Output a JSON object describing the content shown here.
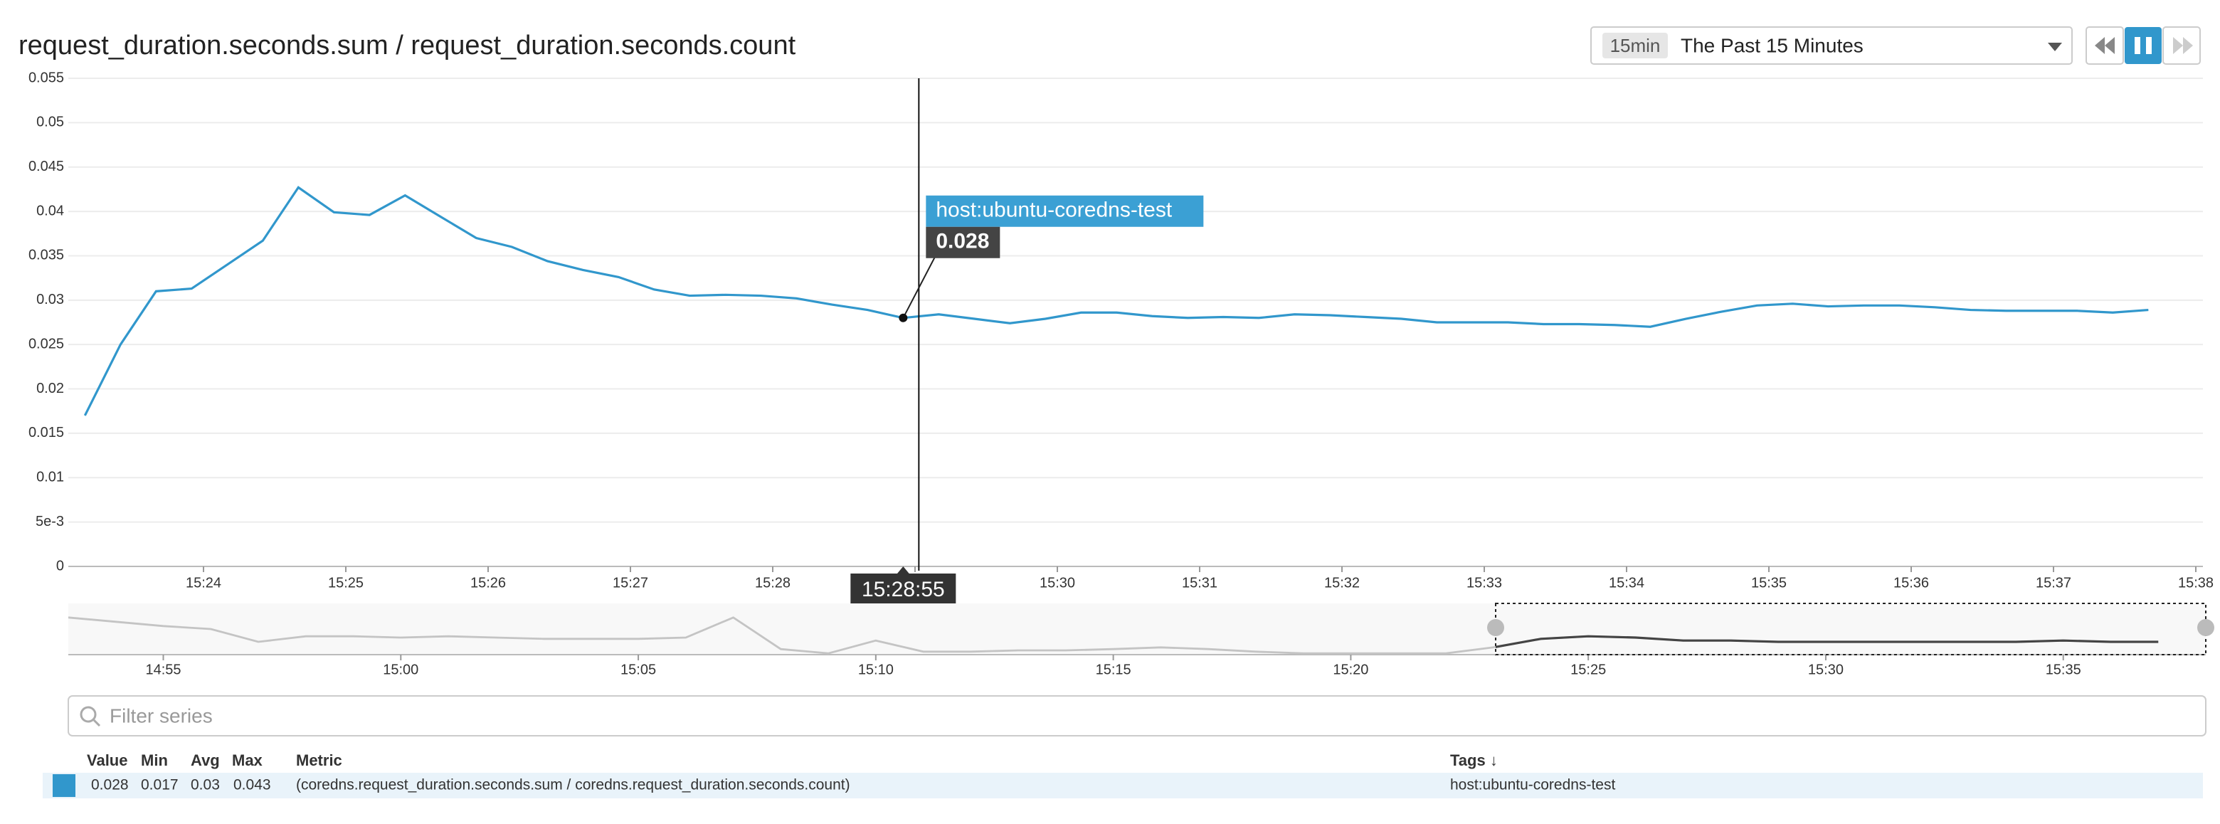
{
  "header": {
    "title": "request_duration.seconds.sum / request_duration.seconds.count",
    "range_tag": "15min",
    "range_label": "The Past 15 Minutes"
  },
  "chart_data": [
    {
      "type": "line",
      "x": [
        "15:23:10",
        "15:23:25",
        "15:23:40",
        "15:23:55",
        "15:24:10",
        "15:24:25",
        "15:24:40",
        "15:24:55",
        "15:25:10",
        "15:25:25",
        "15:25:40",
        "15:25:55",
        "15:26:10",
        "15:26:25",
        "15:26:40",
        "15:26:55",
        "15:27:10",
        "15:27:25",
        "15:27:40",
        "15:27:55",
        "15:28:10",
        "15:28:25",
        "15:28:40",
        "15:28:55",
        "15:29:10",
        "15:29:25",
        "15:29:40",
        "15:29:55",
        "15:30:10",
        "15:30:25",
        "15:30:40",
        "15:30:55",
        "15:31:10",
        "15:31:25",
        "15:31:40",
        "15:31:55",
        "15:32:10",
        "15:32:25",
        "15:32:40",
        "15:32:55",
        "15:33:10",
        "15:33:25",
        "15:33:40",
        "15:33:55",
        "15:34:10",
        "15:34:25",
        "15:34:40",
        "15:34:55",
        "15:35:10",
        "15:35:25",
        "15:35:40",
        "15:35:55",
        "15:36:10",
        "15:36:25",
        "15:36:40",
        "15:36:55",
        "15:37:10",
        "15:37:25",
        "15:37:40"
      ],
      "series": [
        {
          "name": "host:ubuntu-coredns-test",
          "color": "#3197cc",
          "values": [
            0.017,
            0.025,
            0.031,
            0.0313,
            0.034,
            0.0367,
            0.0427,
            0.0399,
            0.0396,
            0.0418,
            0.0394,
            0.037,
            0.036,
            0.0344,
            0.0334,
            0.0326,
            0.0312,
            0.0305,
            0.0306,
            0.0305,
            0.0302,
            0.0295,
            0.0289,
            0.028,
            0.0284,
            0.0279,
            0.0274,
            0.0279,
            0.0286,
            0.0286,
            0.0282,
            0.028,
            0.0281,
            0.028,
            0.0284,
            0.0283,
            0.0281,
            0.0279,
            0.0275,
            0.0275,
            0.0275,
            0.0273,
            0.0273,
            0.0272,
            0.027,
            0.0279,
            0.0287,
            0.0294,
            0.0296,
            0.0293,
            0.0294,
            0.0294,
            0.0292,
            0.0289,
            0.0288,
            0.0288,
            0.0288,
            0.0286,
            0.0289
          ]
        }
      ],
      "hover_time": "15:28:55",
      "xlim": [
        "15:23:03",
        "15:38:03"
      ],
      "xticks": [
        "15:24",
        "15:25",
        "15:26",
        "15:27",
        "15:28",
        "15:29",
        "15:30",
        "15:31",
        "15:32",
        "15:33",
        "15:34",
        "15:35",
        "15:36",
        "15:37",
        "15:38"
      ],
      "ylim": [
        0,
        0.055
      ],
      "yticks": [
        0,
        {
          "value": 0.005,
          "label": "5e-3"
        },
        0.01,
        0.015,
        0.02,
        0.025,
        0.03,
        0.035,
        0.04,
        0.045,
        0.05,
        0.055
      ],
      "grid": true
    },
    {
      "type": "line",
      "x": [
        "14:53",
        "14:54",
        "14:55",
        "14:56",
        "14:57",
        "14:58",
        "14:59",
        "15:00",
        "15:01",
        "15:02",
        "15:03",
        "15:04",
        "15:05",
        "15:06",
        "15:07",
        "15:08",
        "15:09",
        "15:10",
        "15:11",
        "15:12",
        "15:13",
        "15:14",
        "15:15",
        "15:16",
        "15:17",
        "15:18",
        "15:19",
        "15:20",
        "15:21",
        "15:22",
        "15:23",
        "15:24",
        "15:25",
        "15:26",
        "15:27",
        "15:28",
        "15:29",
        "15:30",
        "15:31",
        "15:32",
        "15:33",
        "15:34",
        "15:35",
        "15:36",
        "15:37"
      ],
      "series": [
        {
          "color": "#c4c4c4",
          "values": [
            0.087,
            0.077,
            0.067,
            0.06,
            0.03,
            0.043,
            0.043,
            0.04,
            0.043,
            0.04,
            0.037,
            0.037,
            0.037,
            0.04,
            0.087,
            0.013,
            0.003,
            0.033,
            0.007,
            0.007,
            0.01,
            0.01,
            0.013,
            0.017,
            0.013,
            0.007,
            0.003,
            0.003,
            0.003,
            0.003,
            0.017,
            0.037,
            0.043,
            0.04,
            0.033,
            0.033,
            0.03,
            0.03,
            0.03,
            0.03,
            0.03,
            0.03,
            0.033,
            0.03,
            0.03
          ]
        }
      ],
      "xlim": [
        "14:53",
        "15:38"
      ],
      "xticks": [
        "14:55",
        "15:00",
        "15:05",
        "15:10",
        "15:15",
        "15:20",
        "15:25",
        "15:30",
        "15:35"
      ],
      "ylim": [
        0,
        0.12
      ]
    }
  ],
  "filter": {
    "placeholder": "Filter series"
  },
  "table": {
    "columns": [
      "Value",
      "Min",
      "Avg",
      "Max",
      "Metric",
      "Tags ↓"
    ],
    "rows": [
      [
        0.028,
        0.017,
        0.03,
        0.043,
        "(coredns.request_duration.seconds.sum / coredns.request_duration.seconds.count)",
        "host:ubuntu-coredns-test"
      ]
    ]
  }
}
